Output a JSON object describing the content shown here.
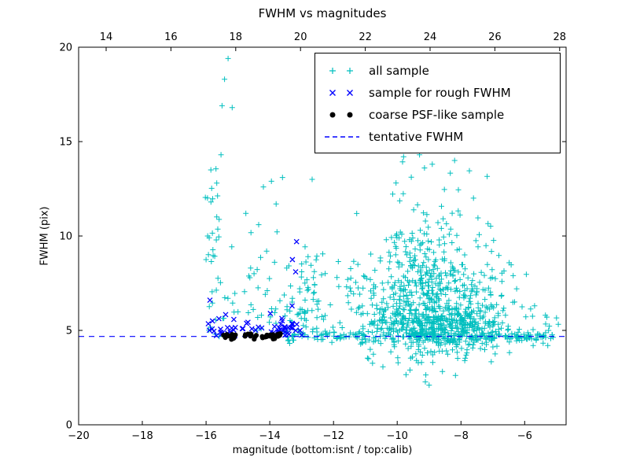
{
  "chart_data": {
    "type": "scatter",
    "title": "FWHM vs magnitudes",
    "xlabel": "magnitude (bottom:isnt / top:calib)",
    "ylabel": "FWHM (pix)",
    "xlim_bottom": [
      -20,
      -4.7
    ],
    "xlim_top": [
      13.15,
      28.2
    ],
    "ylim": [
      0,
      20
    ],
    "xticks_bottom": [
      -20,
      -18,
      -16,
      -14,
      -12,
      -10,
      -8,
      -6
    ],
    "xticks_top": [
      14,
      16,
      18,
      20,
      22,
      24,
      26,
      28
    ],
    "yticks": [
      0,
      5,
      10,
      15,
      20
    ],
    "grid": false,
    "legend_position": "upper center-right",
    "tentative_fwhm_value": 4.68,
    "series": [
      {
        "name": "all sample",
        "marker": "plus",
        "color": "#00bfbf",
        "clusters": [
          {
            "n": 420,
            "x": [
              -8.6,
              1.05
            ],
            "x_clip": [
              -11.8,
              -5.0
            ],
            "y": [
              5.3,
              0.9
            ],
            "y_clip": [
              2.5,
              14.5
            ]
          },
          {
            "n": 300,
            "x": [
              -8.8,
              1.15
            ],
            "x_clip": [
              -11.8,
              -5.0
            ],
            "y_absnorm": [
              4.8,
              2.6
            ],
            "y_clip": [
              2.0,
              14.8
            ]
          },
          {
            "n": 130,
            "x": [
              -8.9,
              0.9
            ],
            "x_clip": [
              -11.5,
              -6.0
            ],
            "y_absnorm": [
              7.0,
              2.8
            ],
            "y_clip": [
              4.0,
              14.6
            ]
          },
          {
            "n": 230,
            "x_range": [
              -13.6,
              -5.1
            ],
            "y": [
              4.68,
              0.16
            ],
            "y_clip": [
              4.2,
              5.2
            ]
          },
          {
            "n": 70,
            "x_range": [
              -12.0,
              -9.0
            ],
            "y_absnorm": [
              5.0,
              2.2
            ],
            "y_clip": [
              4.0,
              13.0
            ]
          },
          {
            "n": 55,
            "x": [
              -12.75,
              0.3
            ],
            "x_clip": [
              -13.4,
              -12.1
            ],
            "y_absnorm": [
              4.9,
              2.6
            ],
            "y_clip": [
              4.3,
              13.2
            ]
          },
          {
            "n": 50,
            "x_range": [
              -15.9,
              -13.3
            ],
            "y_absnorm": [
              5.0,
              2.8
            ],
            "y_clip": [
              4.4,
              14.5
            ]
          },
          {
            "n": 26,
            "x": [
              -15.75,
              0.12
            ],
            "y_range": [
              4.5,
              13.8
            ]
          },
          {
            "n": 12,
            "x_range": [
              -6.4,
              -4.9
            ],
            "y": [
              5.0,
              0.55
            ],
            "y_clip": [
              4.2,
              6.6
            ]
          },
          {
            "n": 14,
            "x_range": [
              -11.3,
              -8.0
            ],
            "y": [
              3.0,
              0.6
            ],
            "y_clip": [
              1.8,
              4.2
            ]
          }
        ],
        "points": [
          [
            -15.31,
            19.4
          ],
          [
            -15.42,
            18.3
          ],
          [
            -15.5,
            16.9
          ],
          [
            -15.18,
            16.8
          ],
          [
            -15.53,
            14.3
          ],
          [
            -15.85,
            13.5
          ],
          [
            -13.95,
            12.9
          ],
          [
            -14.2,
            12.6
          ],
          [
            -13.8,
            11.7
          ],
          [
            -15.95,
            10.0
          ],
          [
            -16.0,
            8.75
          ],
          [
            -15.8,
            6.45
          ],
          [
            -14.75,
            11.2
          ],
          [
            -14.35,
            10.6
          ],
          [
            -13.6,
            13.1
          ],
          [
            -12.67,
            13.0
          ],
          [
            -9.3,
            14.3
          ],
          [
            -8.9,
            13.8
          ],
          [
            -9.8,
            14.2
          ],
          [
            -5.6,
            4.8
          ],
          [
            -5.25,
            5.0
          ],
          [
            -5.35,
            5.8
          ],
          [
            -6.2,
            4.6
          ],
          [
            -6.7,
            5.4
          ],
          [
            -9.6,
            2.9
          ],
          [
            -9.0,
            2.1
          ],
          [
            -10.9,
            3.5
          ],
          [
            -8.2,
            14.0
          ],
          [
            -14.6,
            8.3
          ],
          [
            -14.1,
            9.2
          ],
          [
            -13.3,
            6.5
          ],
          [
            -12.9,
            5.9
          ]
        ]
      },
      {
        "name": "sample for rough FWHM",
        "marker": "x",
        "color": "#0000ff",
        "clusters": [
          {
            "n": 46,
            "x_range": [
              -15.9,
              -13.25
            ],
            "y_absnorm": [
              4.7,
              0.45
            ],
            "y_clip": [
              4.5,
              6.4
            ]
          },
          {
            "n": 14,
            "x": [
              -13.55,
              0.18
            ],
            "y_absnorm": [
              4.75,
              0.5
            ],
            "y_clip": [
              4.5,
              6.2
            ]
          }
        ],
        "points": [
          [
            -13.16,
            9.7
          ],
          [
            -13.29,
            8.75
          ],
          [
            -13.19,
            8.1
          ],
          [
            -15.88,
            6.6
          ],
          [
            -15.8,
            5.5
          ],
          [
            -15.93,
            5.35
          ],
          [
            -13.3,
            6.3
          ],
          [
            -13.05,
            5.0
          ],
          [
            -13.0,
            4.75
          ]
        ]
      },
      {
        "name": "coarse PSF-like sample",
        "marker": "dot",
        "color": "#000000",
        "clusters": [
          {
            "n": 14,
            "x_range": [
              -15.5,
              -15.05
            ],
            "y": [
              4.68,
              0.07
            ],
            "y_clip": [
              4.52,
              4.88
            ]
          },
          {
            "n": 34,
            "x_range": [
              -14.85,
              -13.65
            ],
            "y": [
              4.7,
              0.07
            ],
            "y_clip": [
              4.52,
              4.9
            ]
          }
        ],
        "points": []
      },
      {
        "name": "tentative FWHM",
        "marker": "dashed-line",
        "color": "#0000ff",
        "y": 4.68
      }
    ]
  }
}
